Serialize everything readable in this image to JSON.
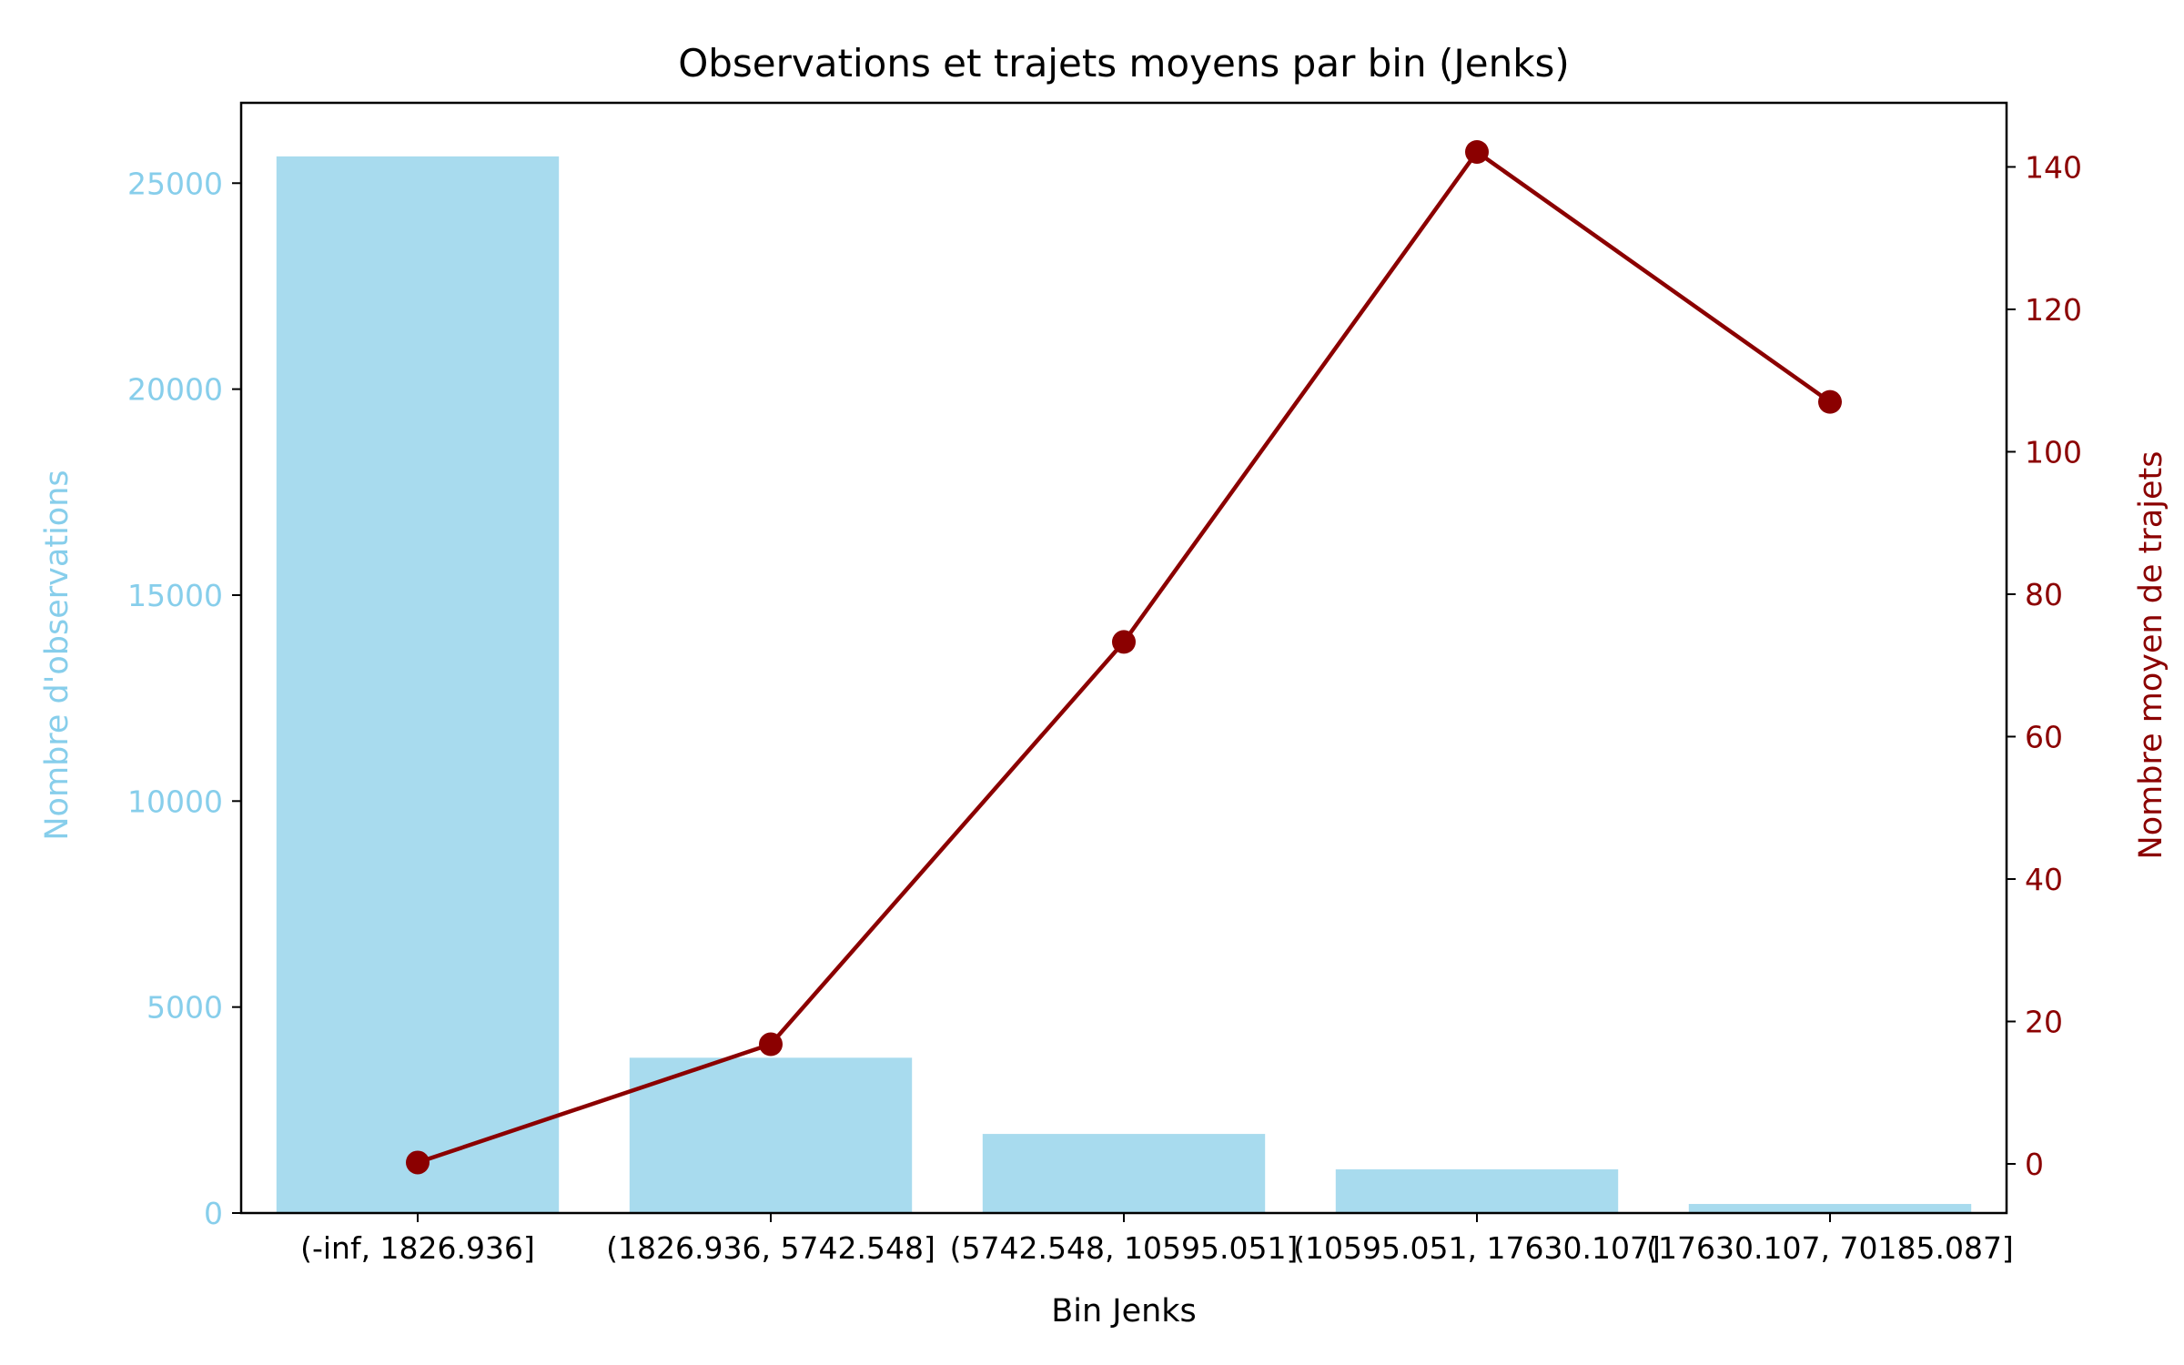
{
  "chart_data": {
    "type": "bar",
    "title": "Observations et trajets moyens par bin (Jenks)",
    "xlabel": "Bin Jenks",
    "categories": [
      "(-inf, 1826.936]",
      "(1826.936, 5742.548]",
      "(5742.548, 10595.051]",
      "(10595.051, 17630.107]",
      "(17630.107, 70185.087]"
    ],
    "bars": {
      "axis": "left",
      "ylabel": "Nombre d'observations",
      "color": "#a8dbee",
      "label_color": "#87ceeb",
      "values": [
        25650,
        3770,
        1920,
        1060,
        220
      ],
      "ylim": [
        0,
        26950
      ],
      "ticks": [
        0,
        5000,
        10000,
        15000,
        20000,
        25000
      ]
    },
    "line": {
      "axis": "right",
      "ylabel": "Nombre moyen de trajets",
      "color": "#8b0000",
      "marker": "circle",
      "values": [
        0.2,
        16.8,
        73.3,
        142.1,
        107.0
      ],
      "ylim": [
        -6.9,
        149.0
      ],
      "ticks": [
        0,
        20,
        40,
        60,
        80,
        100,
        120,
        140
      ]
    },
    "grid": false,
    "legend": "none"
  }
}
